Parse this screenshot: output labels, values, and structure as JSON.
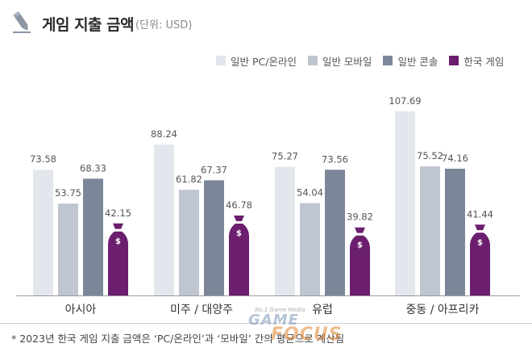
{
  "header": {
    "title": "게임 지출 금액",
    "subtitle": "(단위: USD)"
  },
  "colors": {
    "pc": "#e3e6ec",
    "mobile": "#bfc6d1",
    "console": "#7b8798",
    "korea": "#6b1f6e",
    "title_icon": "#8a94a3"
  },
  "chart_data": {
    "type": "bar",
    "categories": [
      "아시아",
      "미주 / 대양주",
      "유럽",
      "중동 / 아프리카"
    ],
    "series": [
      {
        "name": "일반 PC/온라인",
        "values": [
          73.58,
          88.24,
          75.27,
          107.69
        ]
      },
      {
        "name": "일반 모바일",
        "values": [
          53.75,
          61.82,
          54.04,
          75.52
        ]
      },
      {
        "name": "일반 콘솔",
        "values": [
          68.33,
          67.37,
          73.56,
          74.16
        ]
      },
      {
        "name": "한국 게임",
        "values": [
          42.15,
          46.78,
          39.82,
          41.44
        ]
      }
    ],
    "ylim": [
      0,
      110
    ],
    "grid": false,
    "legend_position": "top-right"
  },
  "footnote": "* 2023년 한국 게임 지출 금액은 ‘PC/온라인’과 ‘모바일’ 간의 평균으로 계산됨",
  "watermark": {
    "tagline": "No.1 Game Media",
    "line1": "GAME",
    "line2": "FOCUS"
  },
  "icons": {
    "title": "pencil-icon",
    "korea_bar_cap": "money-bag-icon",
    "currency_symbol": "$"
  }
}
